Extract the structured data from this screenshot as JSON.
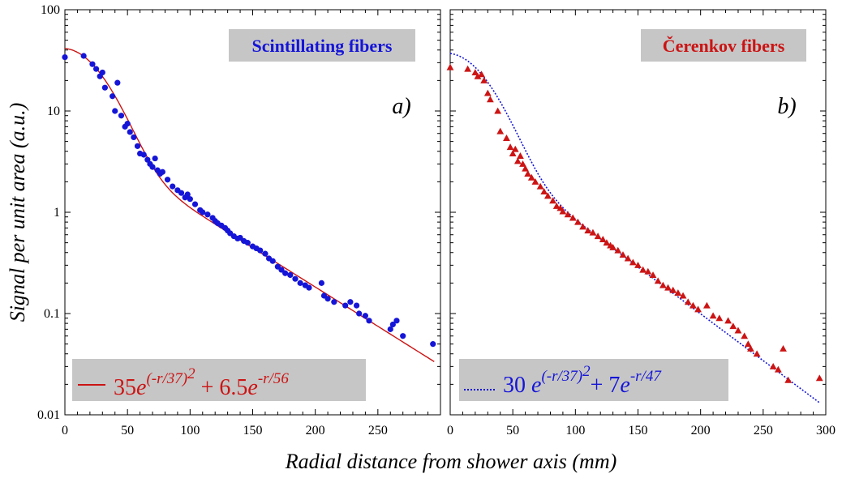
{
  "y_axis_label": "Signal per unit area (a.u.)",
  "x_axis_label": "Radial distance from shower axis (mm)",
  "colors": {
    "blue": "#1515d8",
    "red": "#cc1414",
    "box": "#c6c6c6"
  },
  "chart_data": [
    {
      "type": "scatter",
      "panel_tag": "a)",
      "legend_title": "Scintillating fibers",
      "xlim": [
        0,
        300
      ],
      "ylim": [
        0.01,
        100
      ],
      "yscale": "log",
      "x_ticks": [
        "0",
        "50",
        "100",
        "150",
        "200",
        "250"
      ],
      "y_ticks": [
        "0.01",
        "0.1",
        "1",
        "10",
        "100"
      ],
      "marker": "circle",
      "marker_color": "#1515d8",
      "fit": {
        "A": 35,
        "r0": 37,
        "B": 6.5,
        "lambda": 56,
        "color": "#cc1414",
        "style": "solid",
        "x_max": 295
      },
      "formula": {
        "c1": "35",
        "e": "e",
        "exp1": "(-r/37)",
        "sq": "2",
        "mid": " + 6.5",
        "e2": "e",
        "exp2": "-r/56"
      },
      "points": [
        [
          0,
          34
        ],
        [
          15,
          35
        ],
        [
          22,
          29
        ],
        [
          25,
          26
        ],
        [
          28,
          22
        ],
        [
          30,
          24
        ],
        [
          32,
          17
        ],
        [
          38,
          14
        ],
        [
          40,
          10
        ],
        [
          42,
          19
        ],
        [
          45,
          9
        ],
        [
          48,
          7
        ],
        [
          50,
          7.5
        ],
        [
          52,
          6.2
        ],
        [
          55,
          5.5
        ],
        [
          58,
          4.5
        ],
        [
          60,
          3.8
        ],
        [
          63,
          3.7
        ],
        [
          66,
          3.3
        ],
        [
          68,
          3.0
        ],
        [
          70,
          2.8
        ],
        [
          72,
          3.4
        ],
        [
          74,
          2.6
        ],
        [
          76,
          2.4
        ],
        [
          78,
          2.5
        ],
        [
          82,
          2.1
        ],
        [
          86,
          1.8
        ],
        [
          90,
          1.65
        ],
        [
          93,
          1.55
        ],
        [
          96,
          1.4
        ],
        [
          98,
          1.5
        ],
        [
          100,
          1.35
        ],
        [
          104,
          1.2
        ],
        [
          108,
          1.05
        ],
        [
          110,
          1.0
        ],
        [
          114,
          0.95
        ],
        [
          118,
          0.88
        ],
        [
          120,
          0.82
        ],
        [
          122,
          0.78
        ],
        [
          125,
          0.74
        ],
        [
          128,
          0.7
        ],
        [
          130,
          0.66
        ],
        [
          132,
          0.62
        ],
        [
          135,
          0.58
        ],
        [
          138,
          0.55
        ],
        [
          140,
          0.56
        ],
        [
          143,
          0.52
        ],
        [
          146,
          0.5
        ],
        [
          150,
          0.46
        ],
        [
          153,
          0.44
        ],
        [
          156,
          0.42
        ],
        [
          160,
          0.39
        ],
        [
          163,
          0.35
        ],
        [
          166,
          0.33
        ],
        [
          170,
          0.29
        ],
        [
          173,
          0.27
        ],
        [
          176,
          0.25
        ],
        [
          180,
          0.24
        ],
        [
          184,
          0.22
        ],
        [
          188,
          0.2
        ],
        [
          192,
          0.19
        ],
        [
          195,
          0.18
        ],
        [
          205,
          0.2
        ],
        [
          207,
          0.15
        ],
        [
          210,
          0.14
        ],
        [
          215,
          0.13
        ],
        [
          224,
          0.12
        ],
        [
          228,
          0.13
        ],
        [
          233,
          0.12
        ],
        [
          235,
          0.1
        ],
        [
          240,
          0.095
        ],
        [
          243,
          0.085
        ],
        [
          260,
          0.07
        ],
        [
          262,
          0.078
        ],
        [
          265,
          0.085
        ],
        [
          270,
          0.06
        ],
        [
          294,
          0.05
        ]
      ]
    },
    {
      "type": "scatter",
      "panel_tag": "b)",
      "legend_title": "Čerenkov fibers",
      "xlim": [
        0,
        300
      ],
      "ylim": [
        0.01,
        100
      ],
      "yscale": "log",
      "x_ticks": [
        "0",
        "50",
        "100",
        "150",
        "200",
        "250",
        "300"
      ],
      "y_ticks": [
        "0.01",
        "0.1",
        "1",
        "10",
        "100"
      ],
      "marker": "triangle",
      "marker_color": "#cc1414",
      "fit": {
        "A": 30,
        "r0": 37,
        "B": 7,
        "lambda": 47,
        "color": "#1515d8",
        "style": "dotted",
        "x_max": 295
      },
      "formula": {
        "c1": "30 ",
        "e": "e",
        "exp1": "(-r/37)",
        "sq": "2",
        "mid": "+ 7",
        "e2": "e",
        "exp2": "-r/47"
      },
      "points": [
        [
          0,
          27
        ],
        [
          14,
          26
        ],
        [
          20,
          24
        ],
        [
          22,
          22
        ],
        [
          25,
          23
        ],
        [
          27,
          20
        ],
        [
          30,
          15
        ],
        [
          32,
          13
        ],
        [
          38,
          10
        ],
        [
          40,
          6.3
        ],
        [
          45,
          5.4
        ],
        [
          48,
          4.4
        ],
        [
          50,
          3.8
        ],
        [
          52,
          4.2
        ],
        [
          54,
          3.2
        ],
        [
          56,
          3.6
        ],
        [
          58,
          3.0
        ],
        [
          60,
          2.7
        ],
        [
          62,
          2.4
        ],
        [
          65,
          2.2
        ],
        [
          68,
          2.0
        ],
        [
          72,
          1.8
        ],
        [
          75,
          1.6
        ],
        [
          78,
          1.45
        ],
        [
          82,
          1.3
        ],
        [
          85,
          1.15
        ],
        [
          88,
          1.1
        ],
        [
          90,
          1.02
        ],
        [
          94,
          0.95
        ],
        [
          98,
          0.88
        ],
        [
          102,
          0.8
        ],
        [
          106,
          0.72
        ],
        [
          110,
          0.66
        ],
        [
          114,
          0.63
        ],
        [
          118,
          0.58
        ],
        [
          122,
          0.54
        ],
        [
          125,
          0.5
        ],
        [
          128,
          0.47
        ],
        [
          130,
          0.45
        ],
        [
          134,
          0.42
        ],
        [
          138,
          0.38
        ],
        [
          142,
          0.35
        ],
        [
          146,
          0.32
        ],
        [
          150,
          0.3
        ],
        [
          154,
          0.27
        ],
        [
          158,
          0.26
        ],
        [
          162,
          0.24
        ],
        [
          166,
          0.21
        ],
        [
          170,
          0.19
        ],
        [
          174,
          0.18
        ],
        [
          178,
          0.17
        ],
        [
          182,
          0.16
        ],
        [
          186,
          0.15
        ],
        [
          190,
          0.13
        ],
        [
          194,
          0.12
        ],
        [
          198,
          0.11
        ],
        [
          205,
          0.12
        ],
        [
          210,
          0.095
        ],
        [
          215,
          0.09
        ],
        [
          222,
          0.085
        ],
        [
          226,
          0.075
        ],
        [
          230,
          0.068
        ],
        [
          235,
          0.06
        ],
        [
          238,
          0.05
        ],
        [
          240,
          0.045
        ],
        [
          245,
          0.04
        ],
        [
          258,
          0.03
        ],
        [
          262,
          0.028
        ],
        [
          266,
          0.045
        ],
        [
          270,
          0.022
        ],
        [
          295,
          0.023
        ]
      ]
    }
  ]
}
